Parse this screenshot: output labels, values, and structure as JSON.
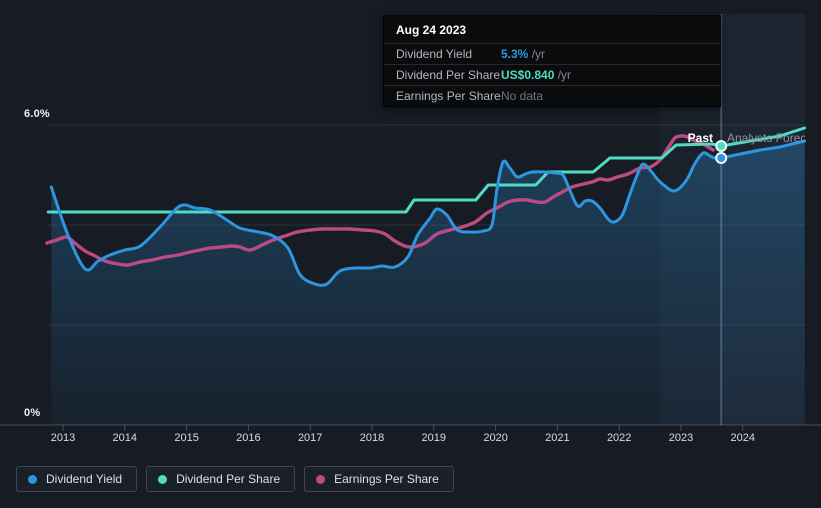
{
  "tooltip": {
    "date": "Aug 24 2023",
    "rows": [
      {
        "label": "Dividend Yield",
        "value": "5.3%",
        "unit": " /yr"
      },
      {
        "label": "Dividend Per Share",
        "value": "US$0.840",
        "unit": " /yr"
      },
      {
        "label": "Earnings Per Share",
        "value": "No data",
        "unit": ""
      }
    ]
  },
  "chart": {
    "past_label": "Past",
    "forecast_label": "Analysts Forecasts",
    "y_axis": {
      "top_label": "6.0%",
      "bottom_label": "0%"
    }
  },
  "legend": {
    "items": [
      {
        "label": "Dividend Yield",
        "color_key": "dividend_yield"
      },
      {
        "label": "Dividend Per Share",
        "color_key": "dividend_per_share"
      },
      {
        "label": "Earnings Per Share",
        "color_key": "earnings_per_share"
      }
    ]
  },
  "colors": {
    "dividend_yield": "#2e96de",
    "dividend_per_share": "#4fdcc2",
    "earnings_per_share": "#bd4a85",
    "page_background": "#161b24",
    "tooltip_background": "#0a0b0d",
    "muted_text": "#70757b"
  },
  "chart_data": {
    "type": "line",
    "x_axis": {
      "ticks": [
        2013,
        2014,
        2015,
        2016,
        2017,
        2018,
        2019,
        2020,
        2021,
        2022,
        2023,
        2024
      ],
      "range": [
        2012.74,
        2025.0
      ]
    },
    "y_axis": {
      "unit": "%",
      "gridline_values": [
        0,
        2,
        4,
        6
      ],
      "labeled_values": [
        0,
        6
      ],
      "range": [
        0,
        8.2
      ]
    },
    "divider_x": 2023.65,
    "highlight_band": [
      2022.66,
      2023.65
    ],
    "cursor": {
      "date": "Aug 24 2023",
      "dividend_yield_pct": 5.3,
      "dividend_per_share": "US$0.840",
      "earnings_per_share": null
    },
    "series": [
      {
        "name": "Earnings Per Share",
        "color_key": "earnings_per_share",
        "style": "smooth",
        "past": [
          [
            2012.74,
            3.64
          ],
          [
            2012.9,
            3.7
          ],
          [
            2013.06,
            3.76
          ],
          [
            2013.19,
            3.64
          ],
          [
            2013.36,
            3.48
          ],
          [
            2013.52,
            3.38
          ],
          [
            2013.68,
            3.28
          ],
          [
            2013.89,
            3.22
          ],
          [
            2014.05,
            3.2
          ],
          [
            2014.25,
            3.26
          ],
          [
            2014.44,
            3.3
          ],
          [
            2014.65,
            3.36
          ],
          [
            2014.86,
            3.4
          ],
          [
            2015.06,
            3.46
          ],
          [
            2015.22,
            3.5
          ],
          [
            2015.38,
            3.54
          ],
          [
            2015.57,
            3.56
          ],
          [
            2015.73,
            3.58
          ],
          [
            2015.86,
            3.56
          ],
          [
            2016.03,
            3.5
          ],
          [
            2016.22,
            3.6
          ],
          [
            2016.4,
            3.7
          ],
          [
            2016.59,
            3.78
          ],
          [
            2016.79,
            3.86
          ],
          [
            2017.0,
            3.9
          ],
          [
            2017.19,
            3.92
          ],
          [
            2017.4,
            3.92
          ],
          [
            2017.64,
            3.92
          ],
          [
            2017.85,
            3.9
          ],
          [
            2018.05,
            3.88
          ],
          [
            2018.21,
            3.82
          ],
          [
            2018.37,
            3.68
          ],
          [
            2018.53,
            3.58
          ],
          [
            2018.66,
            3.56
          ],
          [
            2018.86,
            3.64
          ],
          [
            2019.05,
            3.82
          ],
          [
            2019.26,
            3.9
          ],
          [
            2019.46,
            3.96
          ],
          [
            2019.67,
            4.06
          ],
          [
            2019.86,
            4.24
          ],
          [
            2020.02,
            4.34
          ],
          [
            2020.2,
            4.46
          ],
          [
            2020.35,
            4.5
          ],
          [
            2020.51,
            4.5
          ],
          [
            2020.67,
            4.46
          ],
          [
            2020.8,
            4.46
          ],
          [
            2020.93,
            4.56
          ],
          [
            2021.08,
            4.66
          ],
          [
            2021.24,
            4.76
          ],
          [
            2021.42,
            4.82
          ],
          [
            2021.56,
            4.86
          ],
          [
            2021.69,
            4.92
          ],
          [
            2021.82,
            4.9
          ],
          [
            2021.97,
            4.96
          ],
          [
            2022.14,
            5.02
          ],
          [
            2022.34,
            5.14
          ],
          [
            2022.5,
            5.16
          ],
          [
            2022.66,
            5.3
          ],
          [
            2022.79,
            5.54
          ],
          [
            2022.9,
            5.74
          ],
          [
            2023.0,
            5.78
          ],
          [
            2023.11,
            5.76
          ],
          [
            2023.23,
            5.68
          ],
          [
            2023.36,
            5.62
          ],
          [
            2023.44,
            5.56
          ],
          [
            2023.52,
            5.5
          ]
        ],
        "forecast": []
      },
      {
        "name": "Dividend Per Share",
        "color_key": "dividend_per_share",
        "style": "step",
        "past": [
          [
            2012.76,
            4.26
          ],
          [
            2018.55,
            4.26
          ],
          [
            2018.68,
            4.5
          ],
          [
            2019.68,
            4.5
          ],
          [
            2019.88,
            4.8
          ],
          [
            2020.65,
            4.8
          ],
          [
            2020.85,
            5.06
          ],
          [
            2021.58,
            5.06
          ],
          [
            2021.85,
            5.34
          ],
          [
            2022.69,
            5.34
          ],
          [
            2022.92,
            5.6
          ],
          [
            2023.5,
            5.62
          ],
          [
            2023.65,
            5.58
          ]
        ],
        "forecast": [
          [
            2023.65,
            5.58
          ],
          [
            2024.12,
            5.68
          ],
          [
            2024.6,
            5.78
          ],
          [
            2025.0,
            5.94
          ]
        ]
      },
      {
        "name": "Dividend Yield",
        "color_key": "dividend_yield",
        "style": "smooth",
        "area": true,
        "past": [
          [
            2012.81,
            4.76
          ],
          [
            2013.08,
            3.8
          ],
          [
            2013.36,
            3.12
          ],
          [
            2013.57,
            3.28
          ],
          [
            2013.76,
            3.4
          ],
          [
            2014.0,
            3.5
          ],
          [
            2014.25,
            3.58
          ],
          [
            2014.57,
            3.96
          ],
          [
            2014.89,
            4.38
          ],
          [
            2015.14,
            4.34
          ],
          [
            2015.38,
            4.3
          ],
          [
            2015.65,
            4.1
          ],
          [
            2015.86,
            3.94
          ],
          [
            2016.16,
            3.86
          ],
          [
            2016.4,
            3.78
          ],
          [
            2016.64,
            3.54
          ],
          [
            2016.84,
            3.0
          ],
          [
            2017.08,
            2.82
          ],
          [
            2017.27,
            2.82
          ],
          [
            2017.48,
            3.08
          ],
          [
            2017.72,
            3.14
          ],
          [
            2017.97,
            3.14
          ],
          [
            2018.16,
            3.18
          ],
          [
            2018.37,
            3.16
          ],
          [
            2018.58,
            3.36
          ],
          [
            2018.74,
            3.8
          ],
          [
            2018.94,
            4.14
          ],
          [
            2019.05,
            4.32
          ],
          [
            2019.21,
            4.2
          ],
          [
            2019.38,
            3.9
          ],
          [
            2019.59,
            3.86
          ],
          [
            2019.8,
            3.88
          ],
          [
            2019.94,
            4.0
          ],
          [
            2020.02,
            4.7
          ],
          [
            2020.12,
            5.26
          ],
          [
            2020.23,
            5.14
          ],
          [
            2020.35,
            4.96
          ],
          [
            2020.48,
            5.02
          ],
          [
            2020.6,
            5.06
          ],
          [
            2020.8,
            5.06
          ],
          [
            2020.96,
            5.04
          ],
          [
            2021.09,
            5.0
          ],
          [
            2021.2,
            4.7
          ],
          [
            2021.33,
            4.38
          ],
          [
            2021.45,
            4.48
          ],
          [
            2021.56,
            4.48
          ],
          [
            2021.69,
            4.34
          ],
          [
            2021.82,
            4.12
          ],
          [
            2021.92,
            4.06
          ],
          [
            2022.05,
            4.2
          ],
          [
            2022.18,
            4.64
          ],
          [
            2022.31,
            5.06
          ],
          [
            2022.39,
            5.22
          ],
          [
            2022.5,
            5.1
          ],
          [
            2022.63,
            4.9
          ],
          [
            2022.76,
            4.76
          ],
          [
            2022.87,
            4.68
          ],
          [
            2022.98,
            4.74
          ],
          [
            2023.11,
            4.94
          ],
          [
            2023.23,
            5.24
          ],
          [
            2023.36,
            5.44
          ],
          [
            2023.47,
            5.38
          ],
          [
            2023.55,
            5.34
          ],
          [
            2023.65,
            5.34
          ]
        ],
        "forecast": [
          [
            2023.65,
            5.34
          ],
          [
            2023.96,
            5.42
          ],
          [
            2024.28,
            5.5
          ],
          [
            2024.6,
            5.56
          ],
          [
            2025.0,
            5.68
          ]
        ]
      }
    ],
    "markers": [
      {
        "color_key": "dividend_per_share",
        "x": 2023.65,
        "y": 5.58
      },
      {
        "color_key": "dividend_yield",
        "x": 2023.65,
        "y": 5.34
      }
    ]
  }
}
